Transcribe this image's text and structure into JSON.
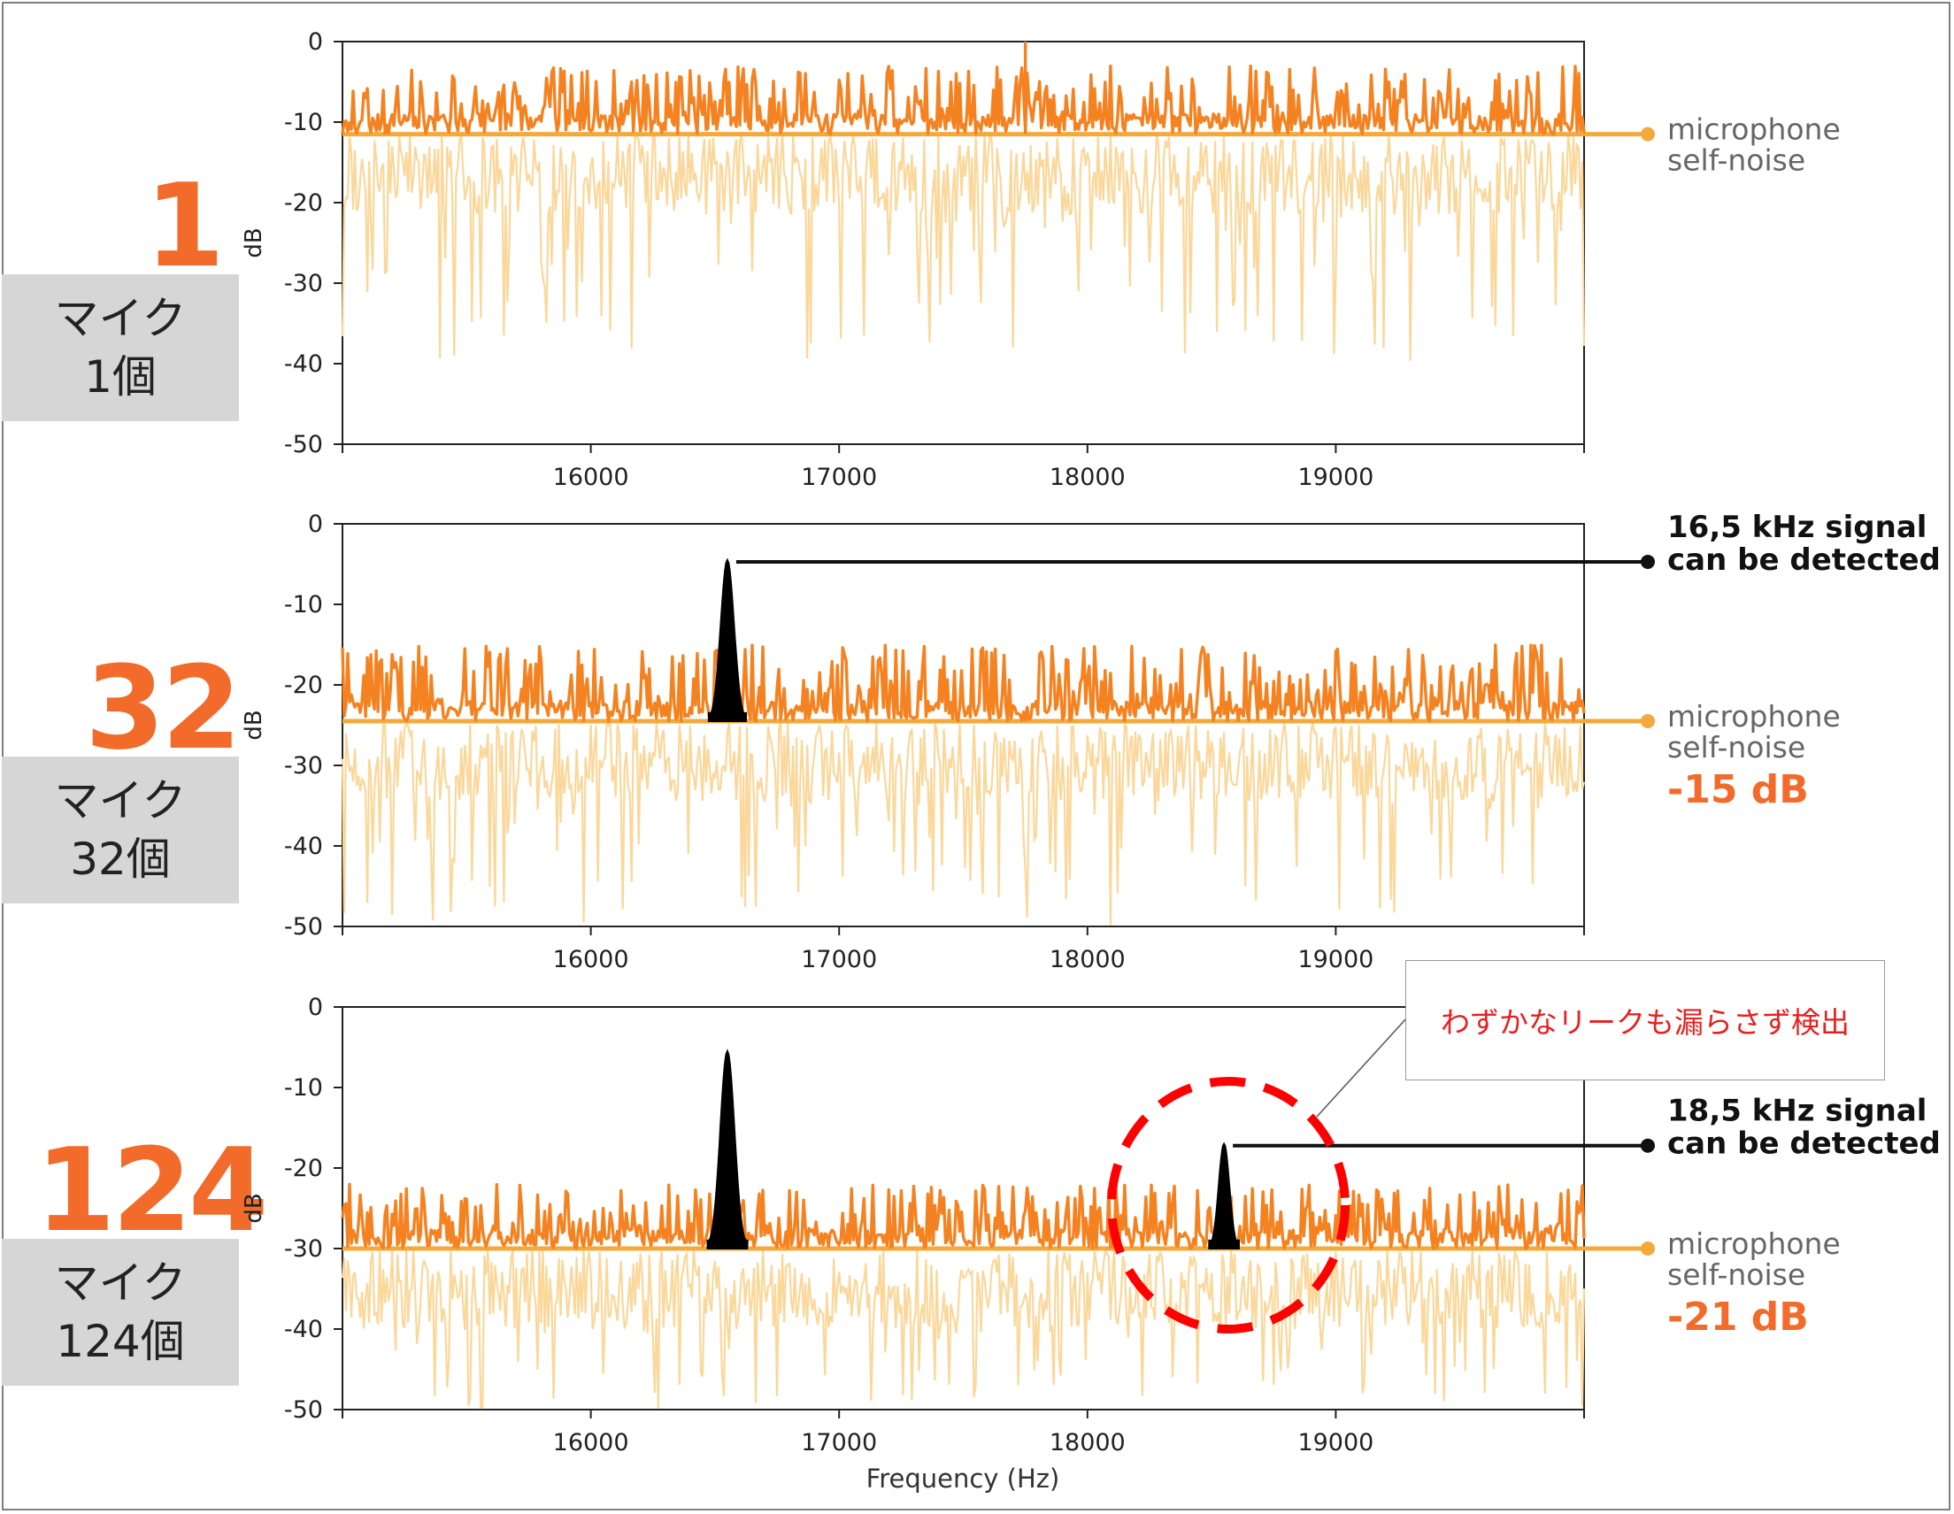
{
  "colors": {
    "accent": "#f58220",
    "noise_floor": "#f4a93c",
    "spectrum_light": "#fbd79a",
    "signal": "#000000",
    "big_number": "#f26b2b",
    "callout_text": "#e8201f",
    "circle": "#ff0000",
    "label_box": "#d6d6d6"
  },
  "xaxis_label": "Frequency (Hz)",
  "callout_text": "わずかなリークも漏らさず検出",
  "panels": [
    {
      "big_number": "1",
      "mic_label_line1": "マイク",
      "mic_label_line2": "1個",
      "ylabel": "dB",
      "yticks": [
        "0",
        "-10",
        "-20",
        "-30",
        "-40",
        "-50"
      ],
      "xticks": [
        "16000",
        "17000",
        "18000",
        "19000"
      ],
      "noise_label_line1": "microphone",
      "noise_label_line2": "self-noise",
      "noise_value": "",
      "signal_label_line1": "",
      "signal_label_line2": ""
    },
    {
      "big_number": "32",
      "mic_label_line1": "マイク",
      "mic_label_line2": "32個",
      "ylabel": "dB",
      "yticks": [
        "0",
        "-10",
        "-20",
        "-30",
        "-40",
        "-50"
      ],
      "xticks": [
        "16000",
        "17000",
        "18000",
        "19000"
      ],
      "noise_label_line1": "microphone",
      "noise_label_line2": "self-noise",
      "noise_value": "-15 dB",
      "signal_label_line1": "16,5 kHz signal",
      "signal_label_line2": "can be detected"
    },
    {
      "big_number": "124",
      "mic_label_line1": "マイク",
      "mic_label_line2": "124個",
      "ylabel": "dB",
      "yticks": [
        "0",
        "-10",
        "-20",
        "-30",
        "-40",
        "-50"
      ],
      "xticks": [
        "16000",
        "17000",
        "18000",
        "19000"
      ],
      "noise_label_line1": "microphone",
      "noise_label_line2": "self-noise",
      "noise_value": "-21 dB",
      "signal_label_line1": "18,5 kHz signal",
      "signal_label_line2": "can be detected"
    }
  ],
  "chart_data": [
    {
      "type": "line",
      "xlabel": "",
      "ylabel": "dB",
      "xlim": [
        15000,
        20000
      ],
      "ylim": [
        -50,
        0
      ],
      "xticks": [
        16000,
        17000,
        18000,
        19000
      ],
      "yticks": [
        0,
        -10,
        -20,
        -30,
        -40,
        -50
      ],
      "noise_floor_db": -11.5,
      "spike_range_db": [
        -11.5,
        -3
      ],
      "dip_range_db": [
        -11.5,
        -40
      ],
      "peak": {
        "x": 17750,
        "y": 0
      },
      "signals": []
    },
    {
      "type": "line",
      "xlabel": "",
      "ylabel": "dB",
      "xlim": [
        15000,
        20000
      ],
      "ylim": [
        -50,
        0
      ],
      "xticks": [
        16000,
        17000,
        18000,
        19000
      ],
      "yticks": [
        0,
        -10,
        -20,
        -30,
        -40,
        -50
      ],
      "noise_floor_db": -24.5,
      "spike_range_db": [
        -24.5,
        -15
      ],
      "dip_range_db": [
        -24.5,
        -50
      ],
      "signals": [
        {
          "center": 16550,
          "width": 150,
          "peak_db": -4.5
        }
      ],
      "noise_reduction": "-15 dB"
    },
    {
      "type": "line",
      "xlabel": "Frequency (Hz)",
      "ylabel": "dB",
      "xlim": [
        15000,
        20000
      ],
      "ylim": [
        -50,
        0
      ],
      "xticks": [
        16000,
        17000,
        18000,
        19000
      ],
      "yticks": [
        0,
        -10,
        -20,
        -30,
        -40,
        -50
      ],
      "noise_floor_db": -30,
      "spike_range_db": [
        -30,
        -22
      ],
      "dip_range_db": [
        -30,
        -50
      ],
      "signals": [
        {
          "center": 16550,
          "width": 160,
          "peak_db": -5.5
        },
        {
          "center": 18550,
          "width": 120,
          "peak_db": -17
        }
      ],
      "noise_reduction": "-21 dB"
    }
  ]
}
